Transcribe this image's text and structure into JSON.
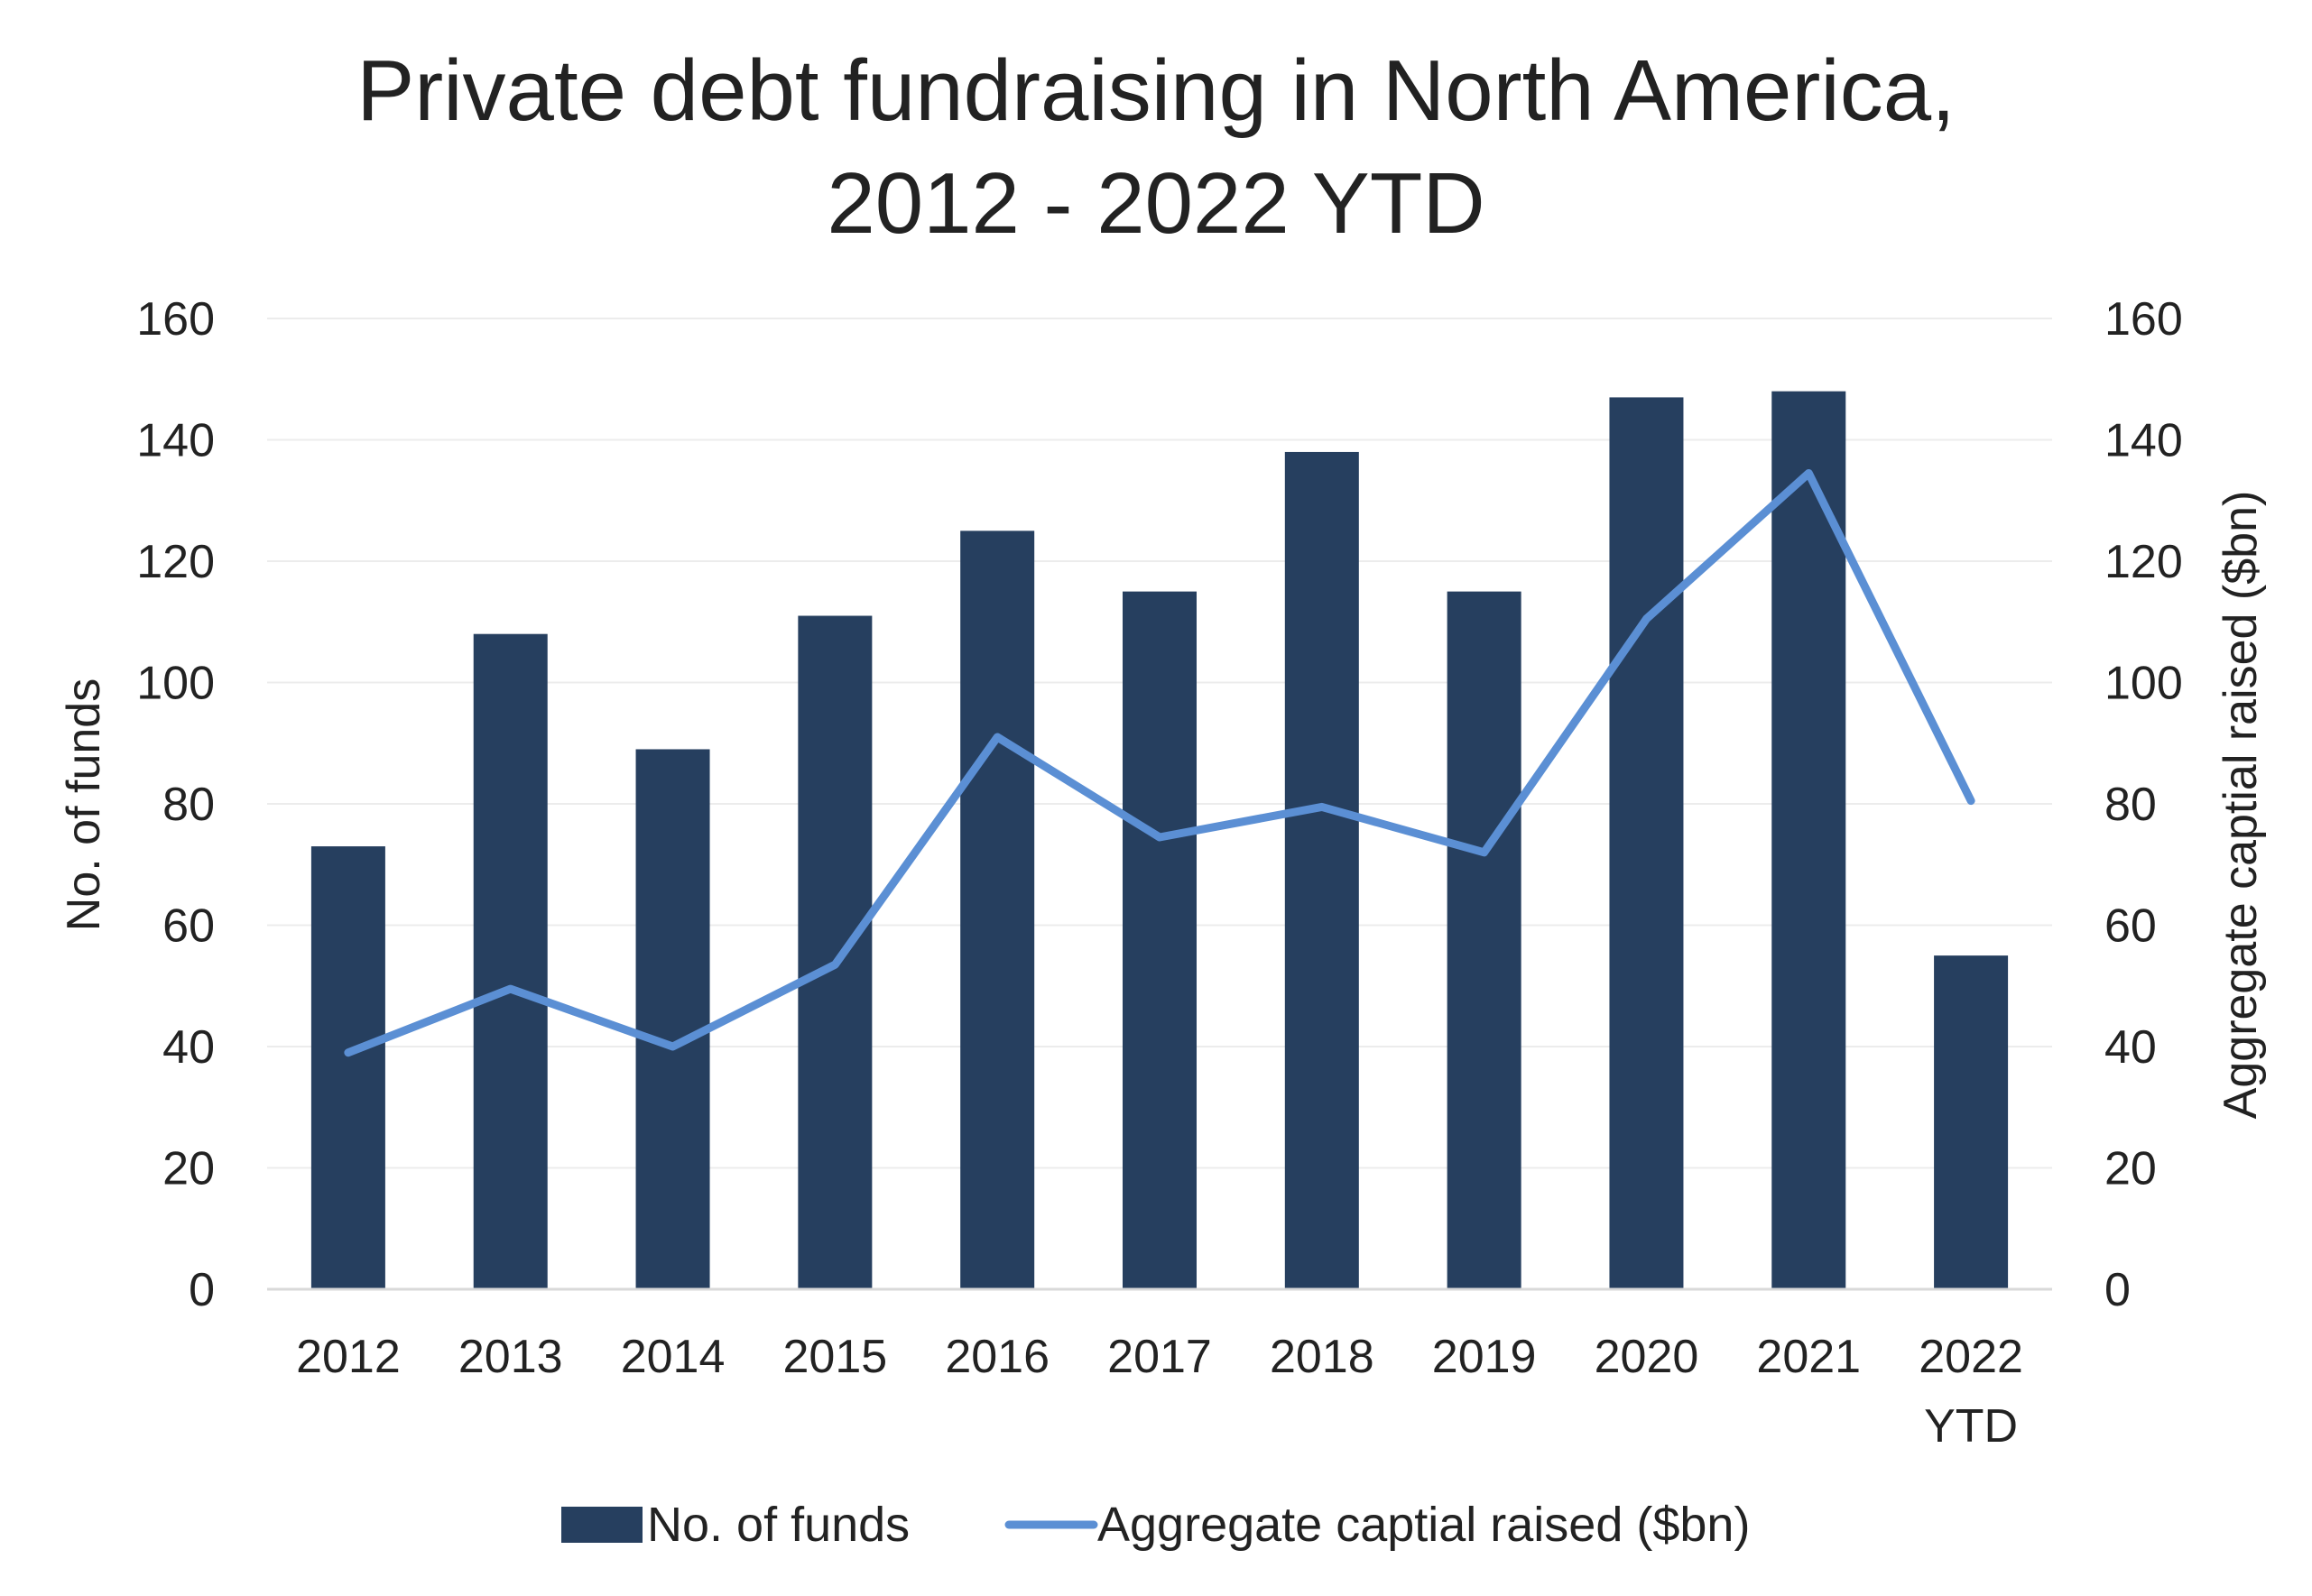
{
  "chart_data": {
    "type": "bar",
    "title": [
      "Private debt fundraising in North America,",
      "2012 - 2022 YTD"
    ],
    "categories": [
      "2012",
      "2013",
      "2014",
      "2015",
      "2016",
      "2017",
      "2018",
      "2019",
      "2020",
      "2021",
      "2022"
    ],
    "category_sublabels": [
      "",
      "",
      "",
      "",
      "",
      "",
      "",
      "",
      "",
      "",
      "YTD"
    ],
    "ylabel_left": "No. of funds",
    "ylabel_right": "Aggregate captial raised ($bn)",
    "ylim_left": [
      0,
      160
    ],
    "ylim_right": [
      0,
      160
    ],
    "yticks_left": [
      "0",
      "20",
      "40",
      "60",
      "80",
      "100",
      "120",
      "140",
      "160"
    ],
    "yticks_right": [
      "0",
      "20",
      "40",
      "60",
      "80",
      "100",
      "120",
      "140",
      "160"
    ],
    "grid": true,
    "legend_position": "bottom",
    "series": [
      {
        "name": "No. of funds",
        "type": "bar",
        "axis": "left",
        "color": "#263f5f",
        "values": [
          73,
          108,
          89,
          111,
          125,
          115,
          138,
          115,
          147,
          148,
          55
        ]
      },
      {
        "name": "Aggregate captial raised ($bn)",
        "type": "line",
        "axis": "right",
        "color": "#5b8fd4",
        "values": [
          39,
          49.5,
          40,
          53.5,
          91,
          74.5,
          79.5,
          72,
          110.5,
          134.5,
          80.5
        ]
      }
    ]
  }
}
